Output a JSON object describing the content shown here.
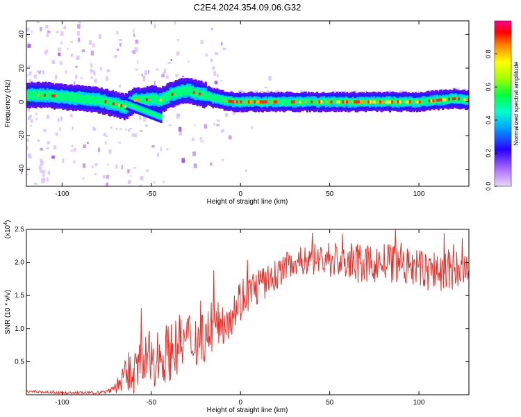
{
  "title": "C2E4.2024.354.09.06.G32",
  "colors": {
    "snr_line": "#e8302a",
    "colorbar": [
      "#d6b3f5",
      "#7b00ff",
      "#0000ff",
      "#00c8ff",
      "#00ff66",
      "#8cff00",
      "#ffff00",
      "#ff8800",
      "#ff0000",
      "#ff0090"
    ]
  },
  "chart_data": [
    {
      "type": "heatmap",
      "title": "C2E4.2024.354.09.06.G32",
      "xlabel": "Height of straight line (km)",
      "ylabel": "Frequency (Hz)",
      "xlim": [
        -120,
        128
      ],
      "ylim": [
        -50,
        48
      ],
      "x_ticks": [
        -100,
        -50,
        0,
        50,
        100
      ],
      "y_ticks": [
        -40,
        -20,
        0,
        20,
        40
      ],
      "colorbar": {
        "label": "Normalized spectral amplitude",
        "range": [
          0,
          1
        ],
        "ticks": [
          "0.0",
          "0.2",
          "0.4",
          "0.6",
          "0.8"
        ]
      },
      "ridge": {
        "x": [
          -118,
          -110,
          -100,
          -90,
          -80,
          -72,
          -65,
          -60,
          -55,
          -50,
          -45,
          -40,
          -35,
          -30,
          -25,
          -20,
          -15,
          -10,
          -5,
          0,
          10,
          20,
          30,
          40,
          50,
          60,
          70,
          80,
          90,
          100,
          110,
          120,
          128
        ],
        "freq": [
          4,
          4,
          3,
          2,
          1,
          -1,
          -3,
          1,
          1,
          2,
          1,
          4,
          6,
          7,
          5,
          4,
          2,
          1,
          0,
          0,
          0,
          0,
          0,
          0,
          0,
          0,
          0,
          0,
          0,
          0,
          1,
          2,
          1
        ]
      },
      "branch": {
        "x": [
          -65,
          -60,
          -55,
          -50,
          -45
        ],
        "freq": [
          -1,
          -3,
          -5,
          -7,
          -9
        ]
      }
    },
    {
      "type": "line",
      "xlabel": "Height of straight line (km)",
      "ylabel": "SNR (10 * v/v)",
      "y_scale_label": "(x10^4)",
      "xlim": [
        -120,
        128
      ],
      "ylim": [
        0,
        2.5
      ],
      "x_ticks": [
        -100,
        -50,
        0,
        50,
        100
      ],
      "y_ticks": [
        "0.5",
        "1.0",
        "1.5",
        "2.0",
        "2.5"
      ],
      "series": [
        {
          "x": [
            -120,
            -110,
            -100,
            -90,
            -80,
            -75,
            -70,
            -65,
            -60,
            -55,
            -50,
            -45,
            -40,
            -35,
            -30,
            -25,
            -20,
            -15,
            -10,
            -5,
            0,
            5,
            10,
            15,
            20,
            25,
            30,
            40,
            50,
            60,
            70,
            80,
            90,
            100,
            110,
            120,
            128
          ],
          "values": [
            0.05,
            0.04,
            0.03,
            0.03,
            0.03,
            0.05,
            0.12,
            0.25,
            0.35,
            0.45,
            0.55,
            0.6,
            0.65,
            0.75,
            0.8,
            0.85,
            0.9,
            1.0,
            1.1,
            1.25,
            1.45,
            1.55,
            1.65,
            1.7,
            1.8,
            1.95,
            2.0,
            2.05,
            2.05,
            2.0,
            1.95,
            2.0,
            1.95,
            1.9,
            1.85,
            1.9,
            1.85
          ],
          "spread": [
            0.02,
            0.02,
            0.02,
            0.02,
            0.02,
            0.04,
            0.1,
            0.25,
            0.35,
            0.4,
            0.45,
            0.45,
            0.45,
            0.45,
            0.5,
            0.45,
            0.4,
            0.35,
            0.35,
            0.35,
            0.35,
            0.3,
            0.3,
            0.25,
            0.25,
            0.2,
            0.2,
            0.25,
            0.3,
            0.3,
            0.3,
            0.3,
            0.3,
            0.3,
            0.35,
            0.4,
            0.35
          ]
        }
      ]
    }
  ]
}
